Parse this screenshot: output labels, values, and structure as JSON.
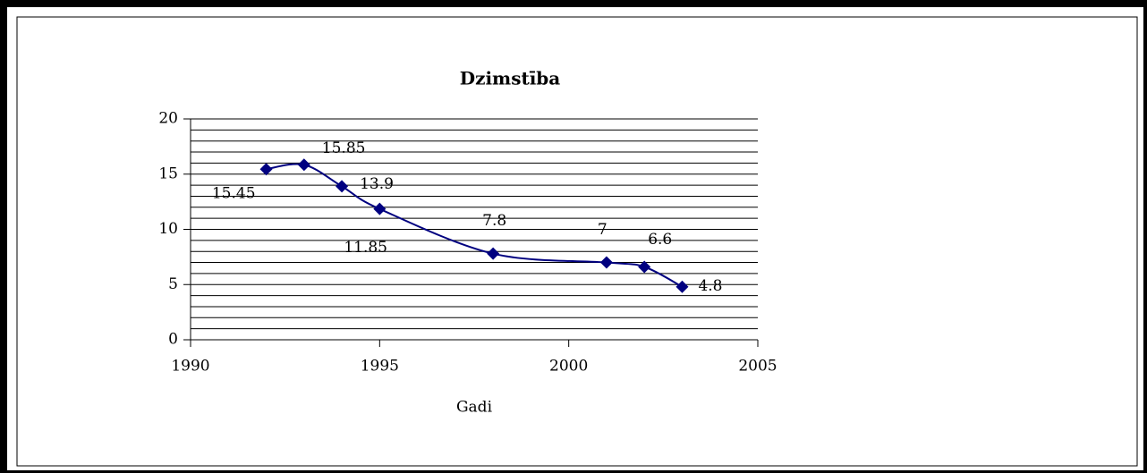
{
  "chart_data": {
    "type": "line",
    "title": "Dzimstība",
    "x_label": "Gadi",
    "x": [
      1992,
      1993,
      1994,
      1995,
      1998,
      2001,
      2002,
      2003
    ],
    "series": [
      {
        "color": "#000080",
        "values": [
          15.45,
          15.85,
          13.9,
          11.85,
          7.8,
          7,
          6.6,
          4.8
        ]
      }
    ],
    "xlim": [
      1990,
      2005
    ],
    "xticks": [
      1990,
      1995,
      2000,
      2005
    ],
    "ylim": [
      0,
      20
    ],
    "yticks": [
      0,
      5,
      10,
      15,
      20
    ],
    "y_minor_ticks": [
      1,
      2,
      3,
      4,
      6,
      7,
      8,
      9,
      11,
      12,
      13,
      14,
      16,
      17,
      18,
      19
    ],
    "grid": true,
    "smooth": true,
    "markers": "diamond"
  }
}
